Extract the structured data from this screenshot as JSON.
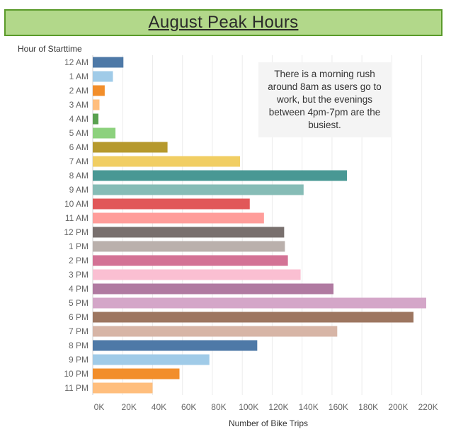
{
  "chart_data": {
    "type": "bar",
    "orientation": "horizontal",
    "title": "August Peak Hours",
    "ylabel": "Hour of Starttime",
    "xlabel": "Number of Bike Trips",
    "xlim": [
      0,
      232000
    ],
    "xticks": [
      {
        "value": 0,
        "label": "0K"
      },
      {
        "value": 20000,
        "label": "20K"
      },
      {
        "value": 40000,
        "label": "40K"
      },
      {
        "value": 60000,
        "label": "60K"
      },
      {
        "value": 80000,
        "label": "80K"
      },
      {
        "value": 100000,
        "label": "100K"
      },
      {
        "value": 120000,
        "label": "120K"
      },
      {
        "value": 140000,
        "label": "140K"
      },
      {
        "value": 160000,
        "label": "160K"
      },
      {
        "value": 180000,
        "label": "180K"
      },
      {
        "value": 200000,
        "label": "200K"
      },
      {
        "value": 220000,
        "label": "220K"
      }
    ],
    "categories": [
      "12 AM",
      "1 AM",
      "2 AM",
      "3 AM",
      "4 AM",
      "5 AM",
      "6 AM",
      "7 AM",
      "8 AM",
      "9 AM",
      "10 AM",
      "11 AM",
      "12 PM",
      "1 PM",
      "2 PM",
      "3 PM",
      "4 PM",
      "5 PM",
      "6 PM",
      "7 PM",
      "8 PM",
      "9 PM",
      "10 PM",
      "11 PM"
    ],
    "values": [
      20500,
      13500,
      8000,
      4500,
      3800,
      15200,
      50000,
      98500,
      170000,
      141000,
      105000,
      114500,
      128000,
      128500,
      130500,
      139000,
      161000,
      223000,
      214500,
      163500,
      110000,
      78000,
      58000,
      40000
    ],
    "colors": [
      "#4e79a7",
      "#a0cbe8",
      "#f28e2b",
      "#ffbe7d",
      "#59a14f",
      "#8cd17d",
      "#b6992d",
      "#f1ce63",
      "#499894",
      "#86bcb6",
      "#e15759",
      "#ff9d9a",
      "#79706e",
      "#bab0ac",
      "#d37295",
      "#fabfd2",
      "#b07aa1",
      "#d4a6c8",
      "#9d7660",
      "#d7b5a6",
      "#4e79a7",
      "#a0cbe8",
      "#f28e2b",
      "#ffbe7d"
    ],
    "grid": true,
    "legend": "none",
    "annotation": "There is a morning rush around 8am as users go to work, but the evenings between 4pm-7pm are the busiest."
  }
}
